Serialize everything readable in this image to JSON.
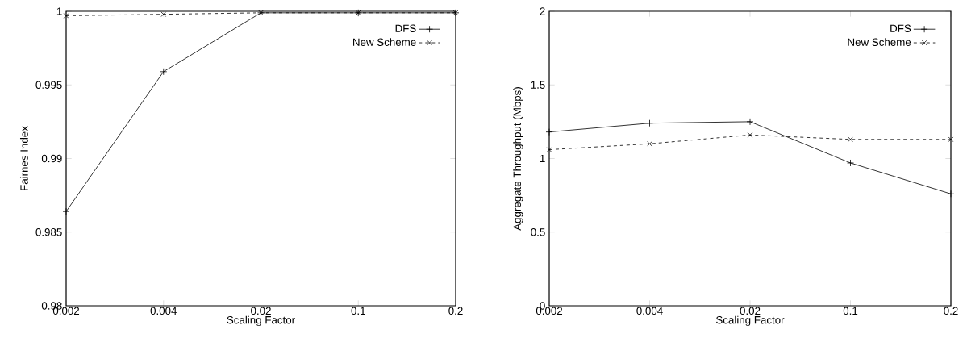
{
  "chart_data": [
    {
      "type": "line",
      "xlabel": "Scaling Factor",
      "ylabel": "Fairnes Index",
      "categories": [
        "0.002",
        "0.004",
        "0.02",
        "0.1",
        "0.2"
      ],
      "series": [
        {
          "name": "DFS",
          "color": "#000000",
          "values": [
            0.9864,
            0.9959,
            0.9999,
            0.9999,
            0.9999
          ],
          "marker": "plus",
          "line_style": "solid"
        },
        {
          "name": "New Scheme",
          "color": "#000000",
          "values": [
            0.9997,
            0.9998,
            0.9999,
            0.9999,
            0.9999
          ],
          "marker": "cross",
          "line_style": "dashed"
        }
      ],
      "ylim": [
        0.98,
        1
      ],
      "yticks": [
        0.98,
        0.985,
        0.99,
        0.995,
        1
      ],
      "legend": "top right",
      "grid": false
    },
    {
      "type": "line",
      "xlabel": "Scaling Factor",
      "ylabel": "Aggregate Throughput (Mbps)",
      "categories": [
        "0.002",
        "0.004",
        "0.02",
        "0.1",
        "0.2"
      ],
      "series": [
        {
          "name": "DFS",
          "color": "#000000",
          "values": [
            1.18,
            1.24,
            1.25,
            0.97,
            0.76
          ],
          "marker": "plus",
          "line_style": "solid"
        },
        {
          "name": "New Scheme",
          "color": "#000000",
          "values": [
            1.06,
            1.1,
            1.16,
            1.13,
            1.13
          ],
          "marker": "cross",
          "line_style": "dashed"
        }
      ],
      "ylim": [
        0,
        2
      ],
      "yticks": [
        0,
        0.5,
        1,
        1.5,
        2
      ],
      "legend": "top right",
      "grid": false
    }
  ]
}
